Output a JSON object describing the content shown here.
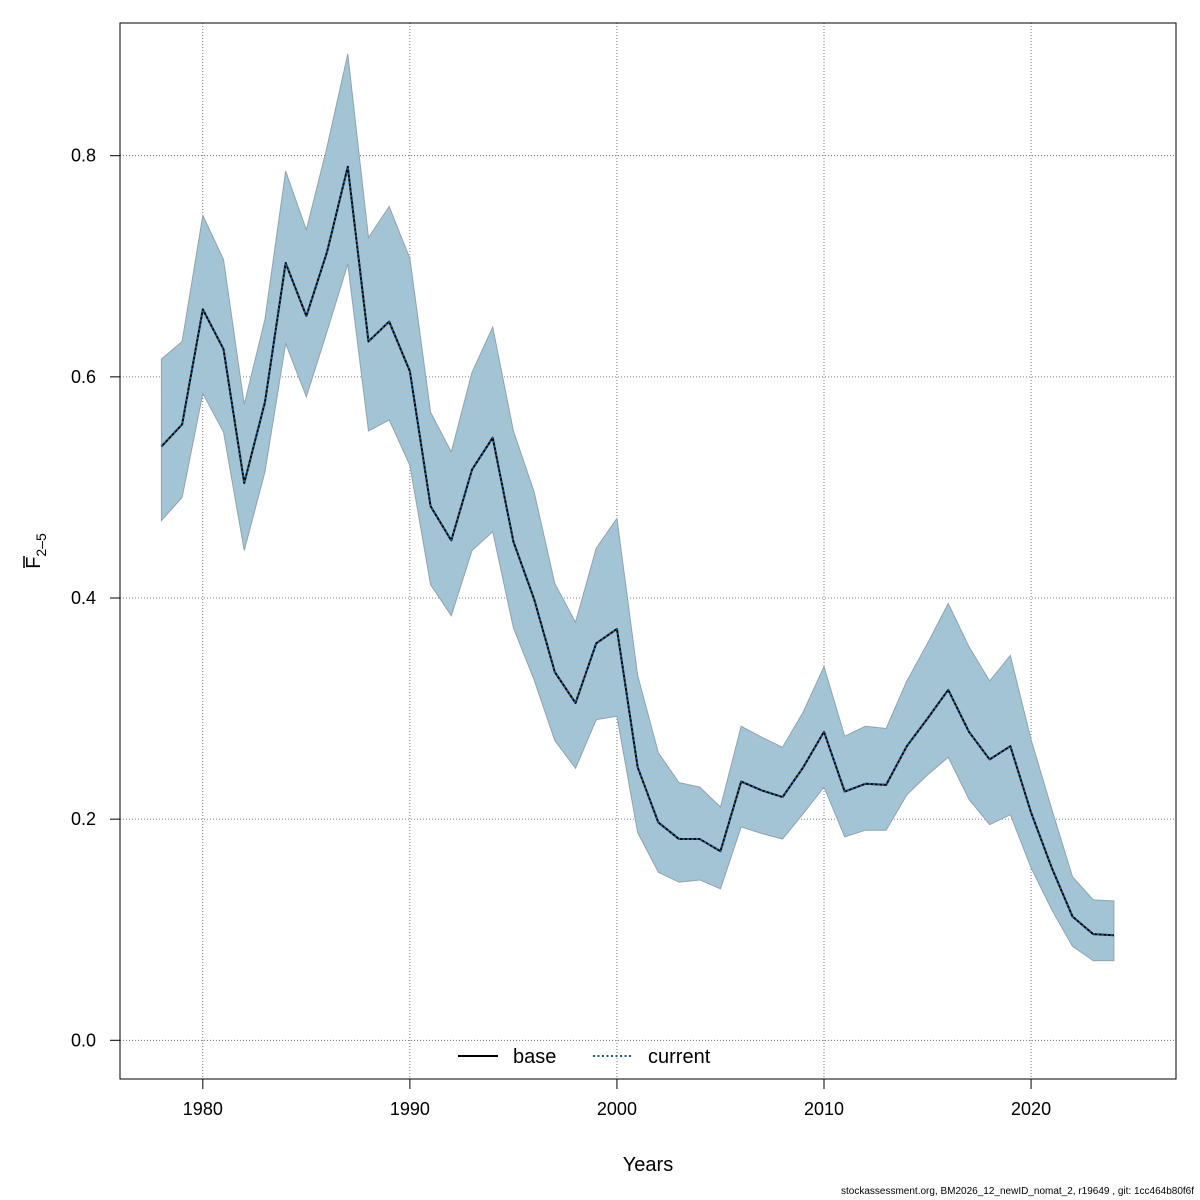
{
  "chart_data": {
    "type": "line",
    "xlabel": "Years",
    "ylabel": {
      "main": "F",
      "subscript": "2–5",
      "overline": true
    },
    "xlim": [
      1976,
      2027
    ],
    "ylim": [
      -0.035,
      0.92
    ],
    "xticks": [
      1980,
      1990,
      2000,
      2010,
      2020
    ],
    "yticks": [
      0.0,
      0.2,
      0.4,
      0.6,
      0.8
    ],
    "ytick_labels": [
      "0.0",
      "0.2",
      "0.4",
      "0.6",
      "0.8"
    ],
    "grid": true,
    "legend": {
      "position": "bottom-center",
      "entries": [
        {
          "label": "base",
          "style": "solid",
          "color": "#000000"
        },
        {
          "label": "current",
          "style": "dotted",
          "color": "#1e5a8c"
        }
      ]
    },
    "band_color": "#a3c4d5",
    "band_edge_color": "#8fa3ae",
    "x": [
      1978,
      1979,
      1980,
      1981,
      1982,
      1983,
      1984,
      1985,
      1986,
      1987,
      1988,
      1989,
      1990,
      1991,
      1992,
      1993,
      1994,
      1995,
      1996,
      1997,
      1998,
      1999,
      2000,
      2001,
      2002,
      2003,
      2004,
      2005,
      2006,
      2007,
      2008,
      2009,
      2010,
      2011,
      2012,
      2013,
      2014,
      2015,
      2016,
      2017,
      2018,
      2019,
      2020,
      2021,
      2022,
      2023,
      2024
    ],
    "series": [
      {
        "name": "base",
        "style": "solid",
        "color": "#000000",
        "values": [
          0.537,
          0.557,
          0.661,
          0.625,
          0.504,
          0.577,
          0.703,
          0.655,
          0.713,
          0.79,
          0.632,
          0.65,
          0.605,
          0.483,
          0.452,
          0.516,
          0.545,
          0.451,
          0.399,
          0.333,
          0.305,
          0.359,
          0.372,
          0.247,
          0.197,
          0.182,
          0.182,
          0.171,
          0.234,
          0.226,
          0.22,
          0.247,
          0.279,
          0.225,
          0.232,
          0.231,
          0.266,
          0.291,
          0.317,
          0.279,
          0.254,
          0.266,
          0.206,
          0.156,
          0.112,
          0.096,
          0.095
        ]
      },
      {
        "name": "current",
        "style": "dotted",
        "color": "#1e5a8c",
        "values": [
          0.537,
          0.557,
          0.661,
          0.625,
          0.504,
          0.577,
          0.703,
          0.655,
          0.713,
          0.79,
          0.632,
          0.65,
          0.605,
          0.483,
          0.452,
          0.516,
          0.545,
          0.451,
          0.399,
          0.333,
          0.305,
          0.359,
          0.372,
          0.247,
          0.197,
          0.182,
          0.182,
          0.171,
          0.234,
          0.226,
          0.22,
          0.247,
          0.279,
          0.225,
          0.232,
          0.231,
          0.266,
          0.291,
          0.317,
          0.279,
          0.254,
          0.266,
          0.206,
          0.156,
          0.112,
          0.096,
          0.095
        ]
      }
    ],
    "confidence_band": {
      "lower": [
        0.47,
        0.491,
        0.585,
        0.55,
        0.443,
        0.514,
        0.63,
        0.582,
        0.641,
        0.702,
        0.551,
        0.561,
        0.52,
        0.412,
        0.384,
        0.443,
        0.46,
        0.373,
        0.326,
        0.271,
        0.246,
        0.29,
        0.293,
        0.188,
        0.152,
        0.143,
        0.145,
        0.137,
        0.193,
        0.187,
        0.182,
        0.205,
        0.229,
        0.184,
        0.19,
        0.19,
        0.222,
        0.24,
        0.256,
        0.218,
        0.195,
        0.204,
        0.156,
        0.118,
        0.085,
        0.072,
        0.072
      ],
      "upper": [
        0.616,
        0.632,
        0.746,
        0.706,
        0.575,
        0.652,
        0.786,
        0.733,
        0.808,
        0.892,
        0.726,
        0.754,
        0.707,
        0.568,
        0.532,
        0.604,
        0.645,
        0.551,
        0.496,
        0.413,
        0.378,
        0.445,
        0.472,
        0.33,
        0.26,
        0.233,
        0.229,
        0.211,
        0.284,
        0.274,
        0.265,
        0.297,
        0.338,
        0.275,
        0.284,
        0.282,
        0.325,
        0.359,
        0.395,
        0.356,
        0.325,
        0.348,
        0.272,
        0.209,
        0.148,
        0.127,
        0.126
      ]
    }
  },
  "footer": "stockassessment.org, BM2026_12_newID_nomat_2, r19649 , git: 1cc464b80f6f"
}
